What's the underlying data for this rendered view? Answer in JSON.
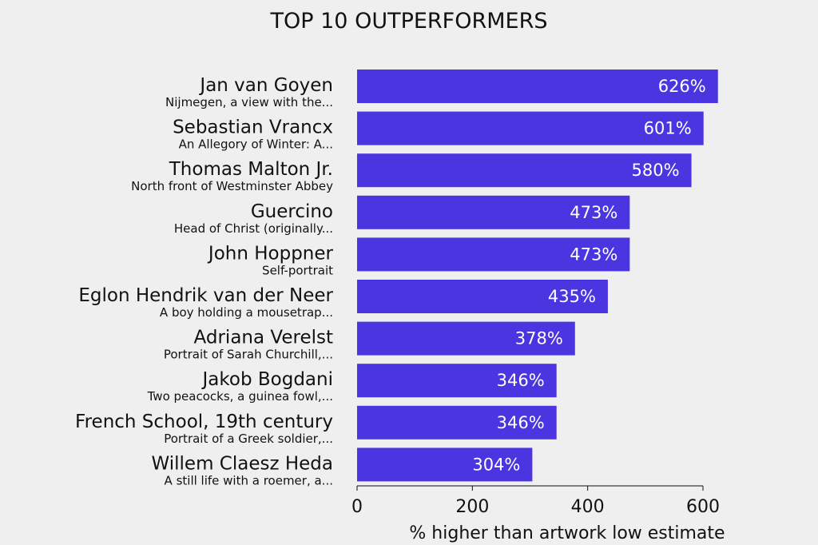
{
  "chart_data": {
    "type": "bar",
    "orientation": "horizontal",
    "title": "TOP 10 OUTPERFORMERS",
    "xlabel": "% higher than artwork low estimate",
    "ylabel": "",
    "xlim": [
      0,
      600
    ],
    "xticks": [
      0,
      200,
      400,
      600
    ],
    "xtick_labels": [
      "0",
      "200",
      "400",
      "600"
    ],
    "bar_color": "#4a35e0",
    "grid": false,
    "categories": [
      {
        "artist": "Jan van Goyen",
        "artwork": "Nijmegen, a view with the...",
        "value": 626,
        "label": "626%"
      },
      {
        "artist": "Sebastian Vrancx",
        "artwork": "An Allegory of Winter: A...",
        "value": 601,
        "label": "601%"
      },
      {
        "artist": "Thomas Malton Jr.",
        "artwork": "North front of Westminster Abbey",
        "value": 580,
        "label": "580%"
      },
      {
        "artist": "Guercino",
        "artwork": "Head of Christ (originally...",
        "value": 473,
        "label": "473%"
      },
      {
        "artist": "John Hoppner",
        "artwork": "Self-portrait",
        "value": 473,
        "label": "473%"
      },
      {
        "artist": "Eglon Hendrik van der Neer",
        "artwork": "A boy holding a mousetrap...",
        "value": 435,
        "label": "435%"
      },
      {
        "artist": "Adriana Verelst",
        "artwork": "Portrait of Sarah Churchill,...",
        "value": 378,
        "label": "378%"
      },
      {
        "artist": "Jakob Bogdani",
        "artwork": "Two peacocks, a guinea fowl,...",
        "value": 346,
        "label": "346%"
      },
      {
        "artist": "French School, 19th century",
        "artwork": "Portrait of a Greek soldier,...",
        "value": 346,
        "label": "346%"
      },
      {
        "artist": "Willem Claesz Heda",
        "artwork": "A still life with a roemer, a...",
        "value": 304,
        "label": "304%"
      }
    ]
  }
}
